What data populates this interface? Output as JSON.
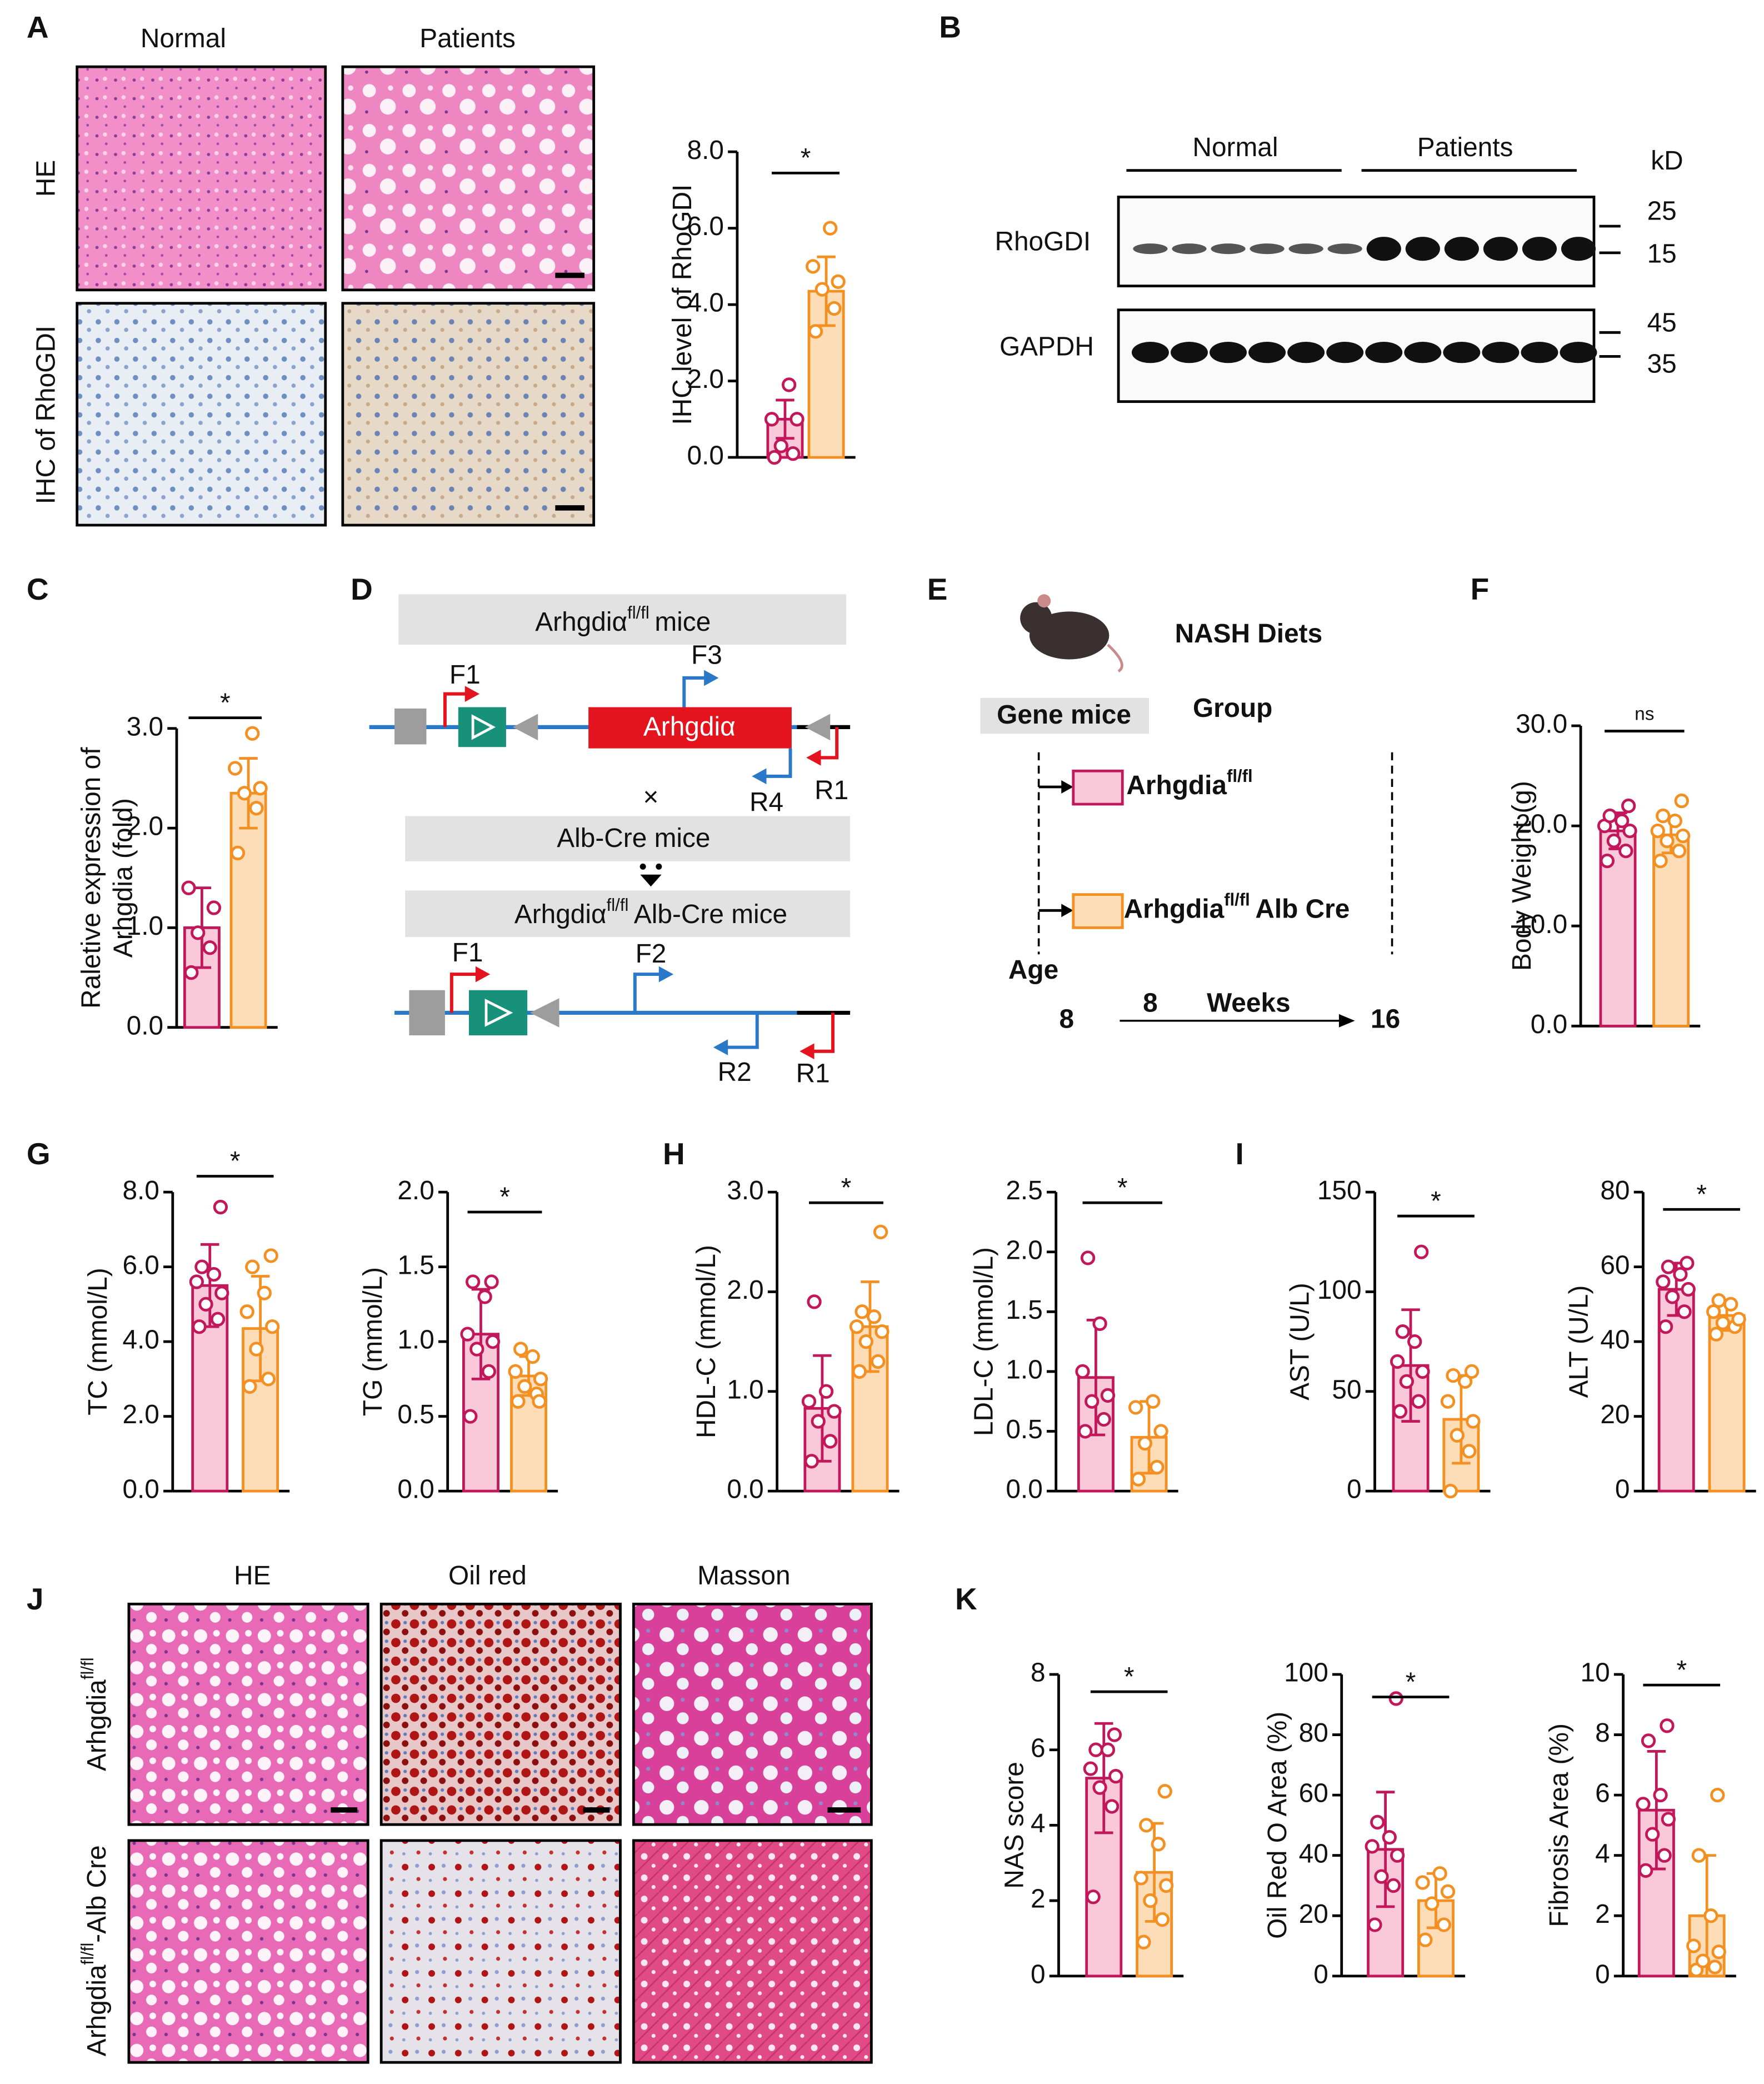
{
  "panels": [
    "A",
    "B",
    "C",
    "D",
    "E",
    "F",
    "G",
    "H",
    "I",
    "J",
    "K"
  ],
  "panel_a": {
    "columns": [
      "Normal",
      "Patients"
    ],
    "rows": [
      "HE",
      "IHC of RhoGDI"
    ]
  },
  "panel_b": {
    "groups": [
      "Normal",
      "Patients"
    ],
    "unit": "kD",
    "proteins": [
      "RhoGDI",
      "GAPDH"
    ],
    "markers": [
      25,
      15,
      45,
      35
    ]
  },
  "panel_d": {
    "top_title": [
      "Arhgdiα",
      "fl/fl",
      "mice"
    ],
    "primers_top": [
      "F1",
      "F3",
      "R4",
      "R1"
    ],
    "gene": "Arhgdiα",
    "cross": "×",
    "cre_title": "Alb-Cre mice",
    "bottom_title": [
      "Arhgdiα",
      "fl/fl",
      "Alb-Cre mice"
    ],
    "primers_bottom": [
      "F1",
      "F2",
      "R2",
      "R1"
    ]
  },
  "panel_e": {
    "title": "NASH Diets",
    "gene_mice": "Gene mice",
    "group": "Group",
    "group_1": [
      "Arhgdia",
      "fl/fl"
    ],
    "group_2": [
      "Arhgdia",
      "fl/fl",
      "Alb Cre"
    ],
    "age": "Age",
    "start": 8,
    "duration": 8,
    "weeks": "Weeks",
    "end": 16
  },
  "panel_j": {
    "columns": [
      "HE",
      "Oil red",
      "Masson"
    ],
    "row_1": [
      "Arhgdia",
      "fl/fl"
    ],
    "row_2": [
      "Arhgdia",
      "fl/fl",
      "-Alb Cre"
    ]
  },
  "chart_data": [
    {
      "type": "bar",
      "ylabel": [
        "IHC level of RhoGDI"
      ],
      "significance": "*",
      "ylim": [
        0,
        8
      ],
      "yticks": [
        {
          "value": 0,
          "label": "0.0"
        },
        {
          "value": 2,
          "label": "2.0"
        },
        {
          "value": 4,
          "label": "4.0"
        },
        {
          "value": 6,
          "label": "6.0"
        },
        {
          "value": 8,
          "label": "8.0"
        }
      ],
      "values": [
        1.0,
        4.35
      ],
      "errors": [
        0.5,
        0.9
      ],
      "points": [
        [
          0.0,
          0.1,
          0.3,
          1.0,
          1.0,
          1.9
        ],
        [
          3.3,
          3.9,
          4.4,
          4.6,
          5.0,
          6.0
        ]
      ],
      "colors": [
        "#c2185b",
        "#f39021"
      ],
      "fills": [
        "#f9c9d9",
        "#fddcb8"
      ]
    },
    {
      "type": "bar",
      "ylabel": [
        "Raletive expression of",
        "Arhgdia (fold)"
      ],
      "significance": "*",
      "ylim": [
        0,
        3
      ],
      "yticks": [
        {
          "value": 0,
          "label": "0.0"
        },
        {
          "value": 1,
          "label": "1.0"
        },
        {
          "value": 2,
          "label": "2.0"
        },
        {
          "value": 3,
          "label": "3.0"
        }
      ],
      "values": [
        1.0,
        2.35
      ],
      "errors": [
        0.4,
        0.35
      ],
      "points": [
        [
          0.55,
          0.8,
          0.95,
          1.2,
          1.4
        ],
        [
          1.75,
          2.2,
          2.35,
          2.4,
          2.6,
          2.95
        ]
      ],
      "colors": [
        "#c2185b",
        "#f39021"
      ],
      "fills": [
        "#f9c9d9",
        "#fddcb8"
      ]
    },
    {
      "type": "bar",
      "ylabel": [
        "Body Weight (g)"
      ],
      "significance": "ns",
      "ylim": [
        0,
        30
      ],
      "yticks": [
        {
          "value": 0,
          "label": "0.0"
        },
        {
          "value": 10,
          "label": "10.0"
        },
        {
          "value": 20,
          "label": "20.0"
        },
        {
          "value": 30,
          "label": "30.0"
        }
      ],
      "values": [
        19.5,
        19.1
      ],
      "errors": [
        1.8,
        1.8
      ],
      "points": [
        [
          16.5,
          17.5,
          18.5,
          19.5,
          20,
          20.5,
          21,
          22
        ],
        [
          16.5,
          17.5,
          18.5,
          19,
          19.5,
          20.5,
          21,
          22.5
        ]
      ],
      "colors": [
        "#c2185b",
        "#f39021"
      ],
      "fills": [
        "#f9c9d9",
        "#fddcb8"
      ]
    },
    {
      "type": "bar",
      "ylabel": [
        "TC (mmol/L)"
      ],
      "significance": "*",
      "ylim": [
        0,
        8
      ],
      "yticks": [
        {
          "value": 0,
          "label": "0.0"
        },
        {
          "value": 2,
          "label": "2.0"
        },
        {
          "value": 4,
          "label": "4.0"
        },
        {
          "value": 6,
          "label": "6.0"
        },
        {
          "value": 8,
          "label": "8.0"
        }
      ],
      "values": [
        5.5,
        4.35
      ],
      "errors": [
        1.1,
        1.4
      ],
      "points": [
        [
          4.4,
          4.6,
          5.0,
          5.3,
          5.6,
          5.8,
          6.0,
          7.6
        ],
        [
          2.8,
          3.0,
          3.8,
          4.4,
          4.8,
          5.3,
          6.0,
          6.3
        ]
      ],
      "colors": [
        "#c2185b",
        "#f39021"
      ],
      "fills": [
        "#f9c9d9",
        "#fddcb8"
      ]
    },
    {
      "type": "bar",
      "ylabel": [
        "TG (mmol/L)"
      ],
      "significance": "*",
      "ylim": [
        0,
        2
      ],
      "yticks": [
        {
          "value": 0,
          "label": "0.0"
        },
        0.5,
        {
          "value": 1,
          "label": "1.0"
        },
        1.5,
        {
          "value": 2,
          "label": "2.0"
        }
      ],
      "values": [
        1.05,
        0.77
      ],
      "errors": [
        0.3,
        0.13
      ],
      "points": [
        [
          0.5,
          0.8,
          0.95,
          1.0,
          1.05,
          1.3,
          1.4,
          1.4
        ],
        [
          0.6,
          0.65,
          0.7,
          0.75,
          0.8,
          0.9,
          0.95,
          0.6
        ]
      ],
      "colors": [
        "#c2185b",
        "#f39021"
      ],
      "fills": [
        "#f9c9d9",
        "#fddcb8"
      ]
    },
    {
      "type": "bar",
      "ylabel": [
        "HDL-C (mmol/L)"
      ],
      "significance": "*",
      "ylim": [
        0,
        3
      ],
      "yticks": [
        {
          "value": 0,
          "label": "0.0"
        },
        {
          "value": 1,
          "label": "1.0"
        },
        {
          "value": 2,
          "label": "2.0"
        },
        {
          "value": 3,
          "label": "3.0"
        }
      ],
      "values": [
        0.83,
        1.65
      ],
      "errors": [
        0.53,
        0.45
      ],
      "points": [
        [
          0.3,
          0.5,
          0.7,
          0.8,
          0.9,
          1.0,
          1.9
        ],
        [
          1.2,
          1.3,
          1.5,
          1.6,
          1.65,
          1.75,
          1.8,
          2.6
        ]
      ],
      "colors": [
        "#c2185b",
        "#f39021"
      ],
      "fills": [
        "#f9c9d9",
        "#fddcb8"
      ]
    },
    {
      "type": "bar",
      "ylabel": [
        "LDL-C (mmol/L)"
      ],
      "significance": "*",
      "ylim": [
        0,
        2.5
      ],
      "yticks": [
        {
          "value": 0,
          "label": "0.0"
        },
        0.5,
        {
          "value": 1,
          "label": "1.0"
        },
        1.5,
        {
          "value": 2,
          "label": "2.0"
        },
        2.5
      ],
      "values": [
        0.95,
        0.45
      ],
      "errors": [
        0.48,
        0.3
      ],
      "points": [
        [
          0.5,
          0.6,
          0.75,
          0.8,
          1.0,
          1.4,
          1.95
        ],
        [
          0.1,
          0.2,
          0.4,
          0.5,
          0.7,
          0.75
        ]
      ],
      "colors": [
        "#c2185b",
        "#f39021"
      ],
      "fills": [
        "#f9c9d9",
        "#fddcb8"
      ]
    },
    {
      "type": "bar",
      "ylabel": [
        "AST (U/L)"
      ],
      "significance": "*",
      "ylim": [
        0,
        150
      ],
      "yticks": [
        0,
        50,
        100,
        150
      ],
      "values": [
        63,
        36
      ],
      "errors": [
        28,
        22
      ],
      "points": [
        [
          40,
          45,
          55,
          60,
          65,
          75,
          80,
          120
        ],
        [
          0,
          20,
          28,
          35,
          45,
          55,
          58,
          60
        ]
      ],
      "colors": [
        "#c2185b",
        "#f39021"
      ],
      "fills": [
        "#f9c9d9",
        "#fddcb8"
      ]
    },
    {
      "type": "bar",
      "ylabel": [
        "ALT (U/L)"
      ],
      "significance": "*",
      "ylim": [
        0,
        80
      ],
      "yticks": [
        0,
        20,
        40,
        60,
        80
      ],
      "values": [
        54,
        47
      ],
      "errors": [
        7,
        4
      ],
      "points": [
        [
          44,
          48,
          52,
          54,
          56,
          58,
          60,
          61
        ],
        [
          42,
          44,
          45,
          46,
          48,
          50,
          51
        ]
      ],
      "colors": [
        "#c2185b",
        "#f39021"
      ],
      "fills": [
        "#f9c9d9",
        "#fddcb8"
      ]
    },
    {
      "type": "bar",
      "ylabel": [
        "NAS score"
      ],
      "significance": "*",
      "ylim": [
        0,
        8
      ],
      "yticks": [
        0,
        2,
        4,
        6,
        8
      ],
      "values": [
        5.25,
        2.75
      ],
      "errors": [
        1.45,
        1.3
      ],
      "points": [
        [
          2.1,
          4.5,
          5.0,
          5.3,
          5.5,
          6.0,
          6.0,
          6.4
        ],
        [
          0.9,
          1.5,
          2.0,
          2.4,
          2.6,
          3.5,
          4.0,
          4.9
        ]
      ],
      "colors": [
        "#c2185b",
        "#f39021"
      ],
      "fills": [
        "#f9c9d9",
        "#fddcb8"
      ]
    },
    {
      "type": "bar",
      "ylabel": [
        "Oil Red O Area (%)"
      ],
      "significance": "*",
      "ylim": [
        0,
        100
      ],
      "yticks": [
        0,
        20,
        40,
        60,
        80,
        100
      ],
      "values": [
        42,
        25
      ],
      "errors": [
        19,
        9
      ],
      "points": [
        [
          17,
          30,
          33,
          40,
          43,
          46,
          51,
          92
        ],
        [
          12,
          17,
          24,
          28,
          31,
          34
        ]
      ],
      "colors": [
        "#c2185b",
        "#f39021"
      ],
      "fills": [
        "#f9c9d9",
        "#fddcb8"
      ]
    },
    {
      "type": "bar",
      "ylabel": [
        "Fibrosis Area (%)"
      ],
      "significance": "*",
      "ylim": [
        0,
        10
      ],
      "yticks": [
        0,
        2,
        4,
        6,
        8,
        10
      ],
      "values": [
        5.5,
        2.0
      ],
      "errors": [
        1.95,
        2.0
      ],
      "points": [
        [
          3.5,
          4.0,
          4.7,
          5.2,
          5.7,
          6.0,
          7.8,
          8.3
        ],
        [
          0.2,
          0.3,
          0.5,
          0.8,
          1.0,
          2.0,
          4.0,
          6.0
        ]
      ],
      "colors": [
        "#c2185b",
        "#f39021"
      ],
      "fills": [
        "#f9c9d9",
        "#fddcb8"
      ]
    }
  ]
}
